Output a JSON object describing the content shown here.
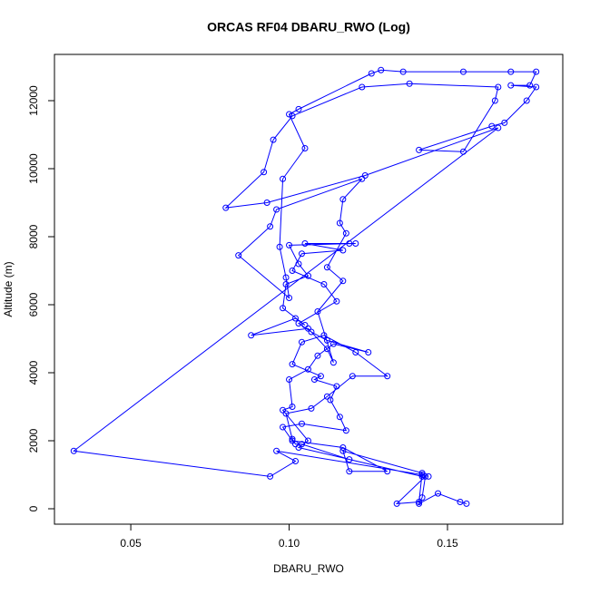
{
  "chart_data": {
    "type": "line",
    "title": "ORCAS RF04 DBARU_RWO (Log)",
    "xlabel": "DBARU_RWO",
    "ylabel": "Altitude (m)",
    "color": "#0000ff",
    "x": [
      0.156,
      0.154,
      0.147,
      0.141,
      0.142,
      0.143,
      0.134,
      0.141,
      0.142,
      0.117,
      0.119,
      0.131,
      0.117,
      0.101,
      0.098,
      0.104,
      0.118,
      0.116,
      0.113,
      0.115,
      0.108,
      0.11,
      0.101,
      0.104,
      0.111,
      0.121,
      0.131,
      0.12,
      0.112,
      0.107,
      0.099,
      0.101,
      0.102,
      0.104,
      0.119,
      0.142,
      0.103,
      0.106,
      0.098,
      0.101,
      0.1,
      0.106,
      0.109,
      0.114,
      0.125,
      0.112,
      0.107,
      0.103,
      0.115,
      0.111,
      0.101,
      0.104,
      0.117,
      0.105,
      0.119,
      0.121,
      0.1,
      0.103,
      0.106,
      0.099,
      0.098,
      0.105,
      0.102,
      0.088,
      0.106,
      0.112,
      0.114,
      0.109,
      0.117,
      0.112,
      0.118,
      0.116,
      0.117,
      0.123,
      0.096,
      0.094,
      0.084,
      0.1,
      0.099,
      0.097,
      0.098,
      0.105,
      0.1,
      0.103,
      0.126,
      0.129,
      0.136,
      0.155,
      0.17,
      0.178,
      0.176,
      0.17,
      0.178,
      0.175,
      0.168,
      0.164,
      0.141,
      0.155,
      0.165,
      0.166,
      0.138,
      0.123,
      0.101,
      0.095,
      0.092,
      0.08,
      0.093,
      0.124,
      0.166,
      0.032,
      0.094,
      0.102,
      0.096,
      0.142,
      0.144
    ],
    "values": [
      150,
      200,
      450,
      150,
      330,
      950,
      150,
      200,
      1050,
      1700,
      1100,
      1100,
      1800,
      2000,
      2400,
      2500,
      2300,
      2700,
      3200,
      3600,
      3800,
      3900,
      4250,
      4900,
      5100,
      4600,
      3900,
      3900,
      3300,
      2950,
      2800,
      2050,
      1900,
      1900,
      1450,
      950,
      1800,
      2000,
      2900,
      3000,
      3800,
      4100,
      4500,
      4850,
      4600,
      4950,
      5200,
      5450,
      6100,
      6600,
      7000,
      7500,
      7600,
      7800,
      7800,
      7800,
      7750,
      7200,
      6850,
      6600,
      5900,
      5400,
      5600,
      5100,
      5300,
      4700,
      4300,
      5800,
      6700,
      7100,
      8100,
      8400,
      9100,
      9700,
      8800,
      8300,
      7450,
      6200,
      6800,
      7700,
      9700,
      10600,
      11600,
      11750,
      12800,
      12900,
      12850,
      12850,
      12850,
      12850,
      12450,
      12450,
      12400,
      12000,
      11350,
      11250,
      10550,
      10500,
      12000,
      12400,
      12500,
      12400,
      11550,
      10850,
      9900,
      8850,
      9000,
      9800,
      11200,
      1700,
      950,
      1400,
      1700,
      1000,
      950
    ],
    "xlim": [
      0.0259,
      0.1864
    ],
    "ylim": [
      -453,
      13360
    ],
    "xticks": [
      0.05,
      {
        "value": 0.1,
        "label": "0.10"
      },
      0.15
    ],
    "yticks": [
      0,
      2000,
      4000,
      6000,
      8000,
      10000,
      12000
    ]
  }
}
